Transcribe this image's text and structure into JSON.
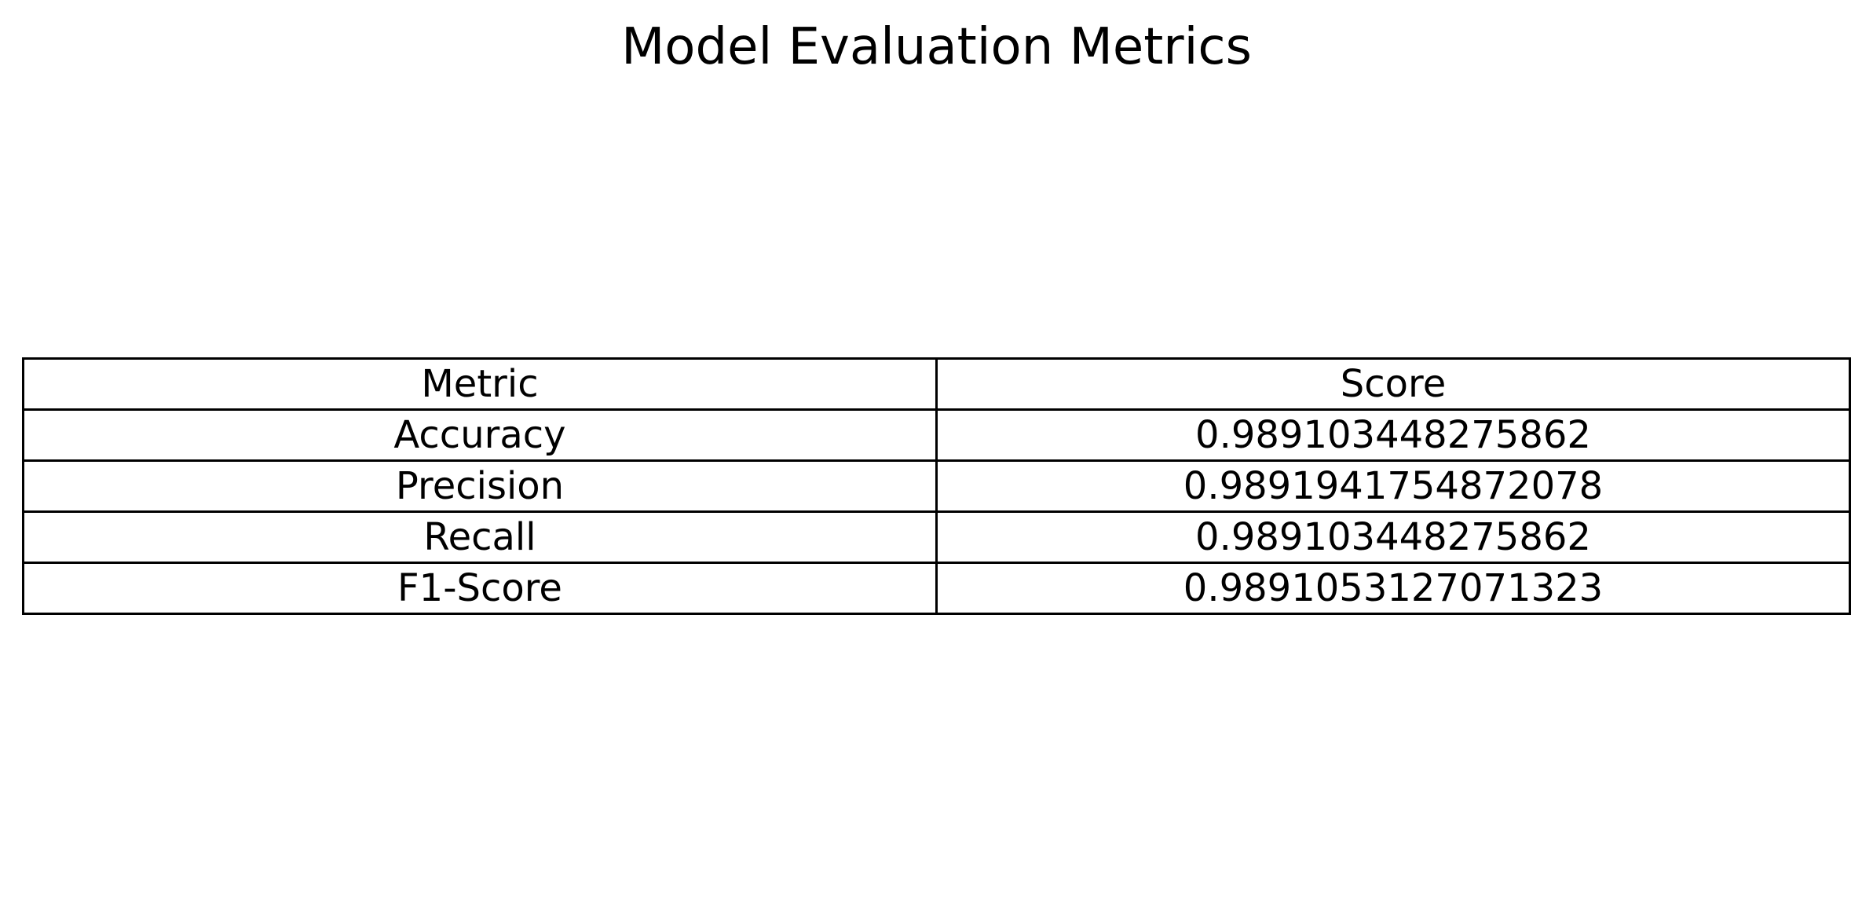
{
  "chart_data": {
    "type": "table",
    "title": "Model Evaluation Metrics",
    "columns": [
      "Metric",
      "Score"
    ],
    "rows": [
      [
        "Accuracy",
        "0.989103448275862"
      ],
      [
        "Precision",
        "0.9891941754872078"
      ],
      [
        "Recall",
        "0.989103448275862"
      ],
      [
        "F1-Score",
        "0.9891053127071323"
      ]
    ]
  },
  "colors": {
    "border": "#000000",
    "text": "#000000",
    "background": "#ffffff"
  }
}
